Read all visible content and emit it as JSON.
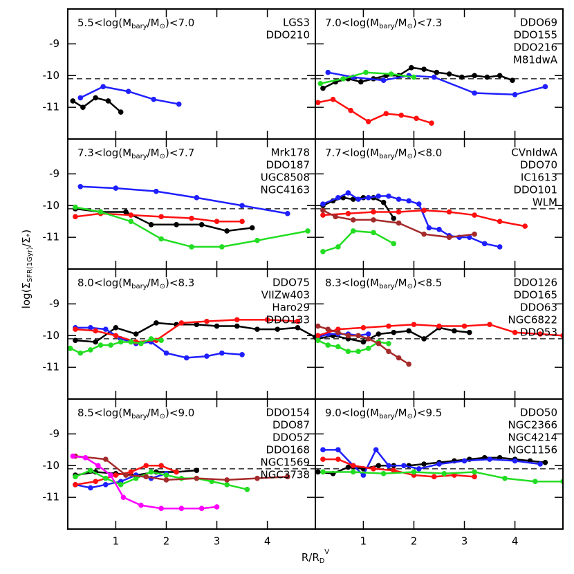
{
  "axes": {
    "y_label_parts": [
      "log(Σ",
      "SFR(1Gyr)",
      "/Σ",
      "*",
      ")"
    ],
    "x_label_parts": [
      "R/R",
      "D",
      "V"
    ],
    "panel_title_parts": [
      "log(M",
      "bary",
      "/M",
      "⊙",
      ")"
    ]
  },
  "chart_data": [
    {
      "type": "line",
      "title_prefix": "5.5<",
      "title_suffix": "<7.0",
      "xlim": [
        0.05,
        4.95
      ],
      "ylim": [
        -12.0,
        -7.9
      ],
      "xticks": [
        1,
        2,
        3,
        4
      ],
      "yticks": [
        -11,
        -10,
        -9
      ],
      "hline": -10.1,
      "series": [
        {
          "name": "LGS3",
          "color": "#000000",
          "x": [
            0.15,
            0.35,
            0.6,
            0.85,
            1.1
          ],
          "values": [
            -10.8,
            -11.0,
            -10.7,
            -10.8,
            -11.15
          ]
        },
        {
          "name": "DDO210",
          "color": "#1f1fff",
          "x": [
            0.3,
            0.75,
            1.25,
            1.75,
            2.25
          ],
          "values": [
            -10.7,
            -10.35,
            -10.5,
            -10.75,
            -10.9
          ]
        }
      ]
    },
    {
      "type": "line",
      "title_prefix": "7.0<",
      "title_suffix": "<7.3",
      "xlim": [
        0.05,
        4.95
      ],
      "ylim": [
        -12.0,
        -7.9
      ],
      "xticks": [
        1,
        2,
        3,
        4
      ],
      "yticks": [
        -11,
        -10,
        -9
      ],
      "hline": -10.1,
      "series": [
        {
          "name": "DDO69",
          "color": "#000000",
          "x": [
            0.2,
            0.45,
            0.7,
            0.95,
            1.2,
            1.45,
            1.7,
            1.95,
            2.2,
            2.45,
            2.7,
            2.95,
            3.2,
            3.45,
            3.7,
            3.95
          ],
          "values": [
            -10.4,
            -10.2,
            -10.1,
            -10.2,
            -10.1,
            -10.0,
            -10.0,
            -9.75,
            -9.8,
            -9.9,
            -9.95,
            -10.05,
            -10.0,
            -10.05,
            -10.0,
            -10.15
          ]
        },
        {
          "name": "DDO155",
          "color": "#1f1fff",
          "x": [
            0.3,
            0.8,
            1.4,
            1.9,
            2.4,
            3.2,
            4.0,
            4.6
          ],
          "values": [
            -9.9,
            -10.05,
            -10.15,
            -10.0,
            -10.05,
            -10.55,
            -10.6,
            -10.35
          ]
        },
        {
          "name": "DDO216",
          "color": "#ff1010",
          "x": [
            0.1,
            0.4,
            0.75,
            1.1,
            1.45,
            1.75,
            2.05,
            2.35
          ],
          "values": [
            -10.85,
            -10.75,
            -11.1,
            -11.45,
            -11.2,
            -11.25,
            -11.35,
            -11.5
          ]
        },
        {
          "name": "M81dwA",
          "color": "#22dd22",
          "x": [
            0.15,
            0.6,
            1.05,
            1.55,
            2.0
          ],
          "values": [
            -10.25,
            -10.1,
            -9.9,
            -9.95,
            -10.05
          ]
        }
      ]
    },
    {
      "type": "line",
      "title_prefix": "7.3<",
      "title_suffix": "<7.7",
      "xlim": [
        0.05,
        4.95
      ],
      "ylim": [
        -12.0,
        -7.9
      ],
      "xticks": [
        1,
        2,
        3,
        4
      ],
      "yticks": [
        -11,
        -10,
        -9
      ],
      "hline": -10.1,
      "series": [
        {
          "name": "Mrk178",
          "color": "#000000",
          "x": [
            0.2,
            0.7,
            1.2,
            1.7,
            2.2,
            2.7,
            3.2,
            3.7
          ],
          "values": [
            -10.1,
            -10.2,
            -10.2,
            -10.6,
            -10.6,
            -10.6,
            -10.8,
            -10.7
          ]
        },
        {
          "name": "DDO187",
          "color": "#1f1fff",
          "x": [
            0.3,
            1.0,
            1.8,
            2.6,
            3.5,
            4.4
          ],
          "values": [
            -9.4,
            -9.45,
            -9.55,
            -9.75,
            -10.0,
            -10.25
          ]
        },
        {
          "name": "UGC8508",
          "color": "#ff1010",
          "x": [
            0.2,
            0.7,
            1.3,
            1.9,
            2.5,
            3.0,
            3.5
          ],
          "values": [
            -10.35,
            -10.25,
            -10.3,
            -10.35,
            -10.4,
            -10.5,
            -10.5
          ]
        },
        {
          "name": "NGC4163",
          "color": "#22dd22",
          "x": [
            0.2,
            0.7,
            1.3,
            1.9,
            2.5,
            3.1,
            3.8,
            4.8
          ],
          "values": [
            -10.05,
            -10.2,
            -10.5,
            -11.05,
            -11.3,
            -11.3,
            -11.1,
            -10.8
          ]
        }
      ]
    },
    {
      "type": "line",
      "title_prefix": "7.7<",
      "title_suffix": "<8.0",
      "xlim": [
        0.05,
        4.95
      ],
      "ylim": [
        -12.0,
        -7.9
      ],
      "xticks": [
        1,
        2,
        3,
        4
      ],
      "yticks": [
        -11,
        -10,
        -9
      ],
      "hline": -10.1,
      "series": [
        {
          "name": "CVnIdwA",
          "color": "#000000",
          "x": [
            0.2,
            0.4,
            0.6,
            0.8,
            1.0,
            1.2,
            1.4,
            1.6
          ],
          "values": [
            -10.0,
            -9.85,
            -9.75,
            -9.8,
            -9.75,
            -9.75,
            -9.9,
            -10.4
          ]
        },
        {
          "name": "DDO70",
          "color": "#1f1fff",
          "x": [
            0.2,
            0.5,
            0.7,
            0.9,
            1.1,
            1.3,
            1.5,
            1.7,
            1.9,
            2.1,
            2.3,
            2.5,
            2.7,
            2.9,
            3.1,
            3.4,
            3.7
          ],
          "values": [
            -9.95,
            -9.75,
            -9.6,
            -9.8,
            -9.75,
            -9.7,
            -9.7,
            -9.8,
            -9.85,
            -9.95,
            -10.7,
            -10.75,
            -10.95,
            -11.0,
            -11.0,
            -11.2,
            -11.3
          ]
        },
        {
          "name": "IC1613",
          "color": "#ff1010",
          "x": [
            0.2,
            0.7,
            1.2,
            1.7,
            2.2,
            2.7,
            3.2,
            3.7,
            4.2
          ],
          "values": [
            -10.3,
            -10.25,
            -10.2,
            -10.2,
            -10.15,
            -10.2,
            -10.3,
            -10.5,
            -10.65
          ]
        },
        {
          "name": "DDO101",
          "color": "#22dd22",
          "x": [
            0.2,
            0.5,
            0.8,
            1.2,
            1.6
          ],
          "values": [
            -11.45,
            -11.3,
            -10.8,
            -10.85,
            -11.2
          ]
        },
        {
          "name": "WLM",
          "color": "#a52a2a",
          "x": [
            0.2,
            0.45,
            0.8,
            1.2,
            1.7,
            2.2,
            2.7,
            3.2
          ],
          "values": [
            -10.15,
            -10.35,
            -10.45,
            -10.45,
            -10.55,
            -10.9,
            -11.0,
            -10.9
          ]
        }
      ]
    },
    {
      "type": "line",
      "title_prefix": "8.0<",
      "title_suffix": "<8.3",
      "xlim": [
        0.05,
        4.95
      ],
      "ylim": [
        -12.0,
        -7.9
      ],
      "xticks": [
        1,
        2,
        3,
        4
      ],
      "yticks": [
        -11,
        -10,
        -9
      ],
      "hline": -10.1,
      "series": [
        {
          "name": "DDO75",
          "color": "#000000",
          "x": [
            0.2,
            0.6,
            1.0,
            1.4,
            1.8,
            2.2,
            2.6,
            3.0,
            3.4,
            3.8,
            4.2,
            4.6,
            4.95
          ],
          "values": [
            -10.15,
            -10.2,
            -9.75,
            -9.95,
            -9.6,
            -9.65,
            -9.65,
            -9.7,
            -9.7,
            -9.8,
            -9.8,
            -9.75,
            -10.05
          ]
        },
        {
          "name": "VIIZw403",
          "color": "#1f1fff",
          "x": [
            0.2,
            0.5,
            0.8,
            1.1,
            1.4,
            1.7,
            2.0,
            2.4,
            2.8,
            3.1,
            3.5
          ],
          "values": [
            -9.75,
            -9.75,
            -9.8,
            -10.1,
            -10.25,
            -10.2,
            -10.55,
            -10.7,
            -10.65,
            -10.55,
            -10.6
          ]
        },
        {
          "name": "Haro29",
          "color": "#ff1010",
          "x": [
            0.2,
            0.6,
            1.0,
            1.4,
            1.8,
            2.3,
            2.8,
            3.4,
            4.0,
            4.6
          ],
          "values": [
            -9.8,
            -9.85,
            -10.0,
            -10.2,
            -10.15,
            -9.6,
            -9.55,
            -9.5,
            -9.5,
            -9.55
          ]
        },
        {
          "name": "DDO133",
          "color": "#22dd22",
          "x": [
            0.1,
            0.3,
            0.5,
            0.7,
            0.9,
            1.1,
            1.3,
            1.5,
            1.7,
            1.9
          ],
          "values": [
            -10.4,
            -10.55,
            -10.45,
            -10.3,
            -10.3,
            -10.2,
            -10.2,
            -10.25,
            -10.1,
            -10.15
          ]
        }
      ]
    },
    {
      "type": "line",
      "title_prefix": "8.3<",
      "title_suffix": "<8.5",
      "xlim": [
        0.05,
        4.95
      ],
      "ylim": [
        -12.0,
        -7.9
      ],
      "xticks": [
        1,
        2,
        3,
        4
      ],
      "yticks": [
        -11,
        -10,
        -9
      ],
      "hline": -10.1,
      "series": [
        {
          "name": "DDO126",
          "color": "#000000",
          "x": [
            0.1,
            0.4,
            0.7,
            1.0,
            1.3,
            1.6,
            1.9,
            2.2,
            2.5,
            2.8,
            3.1
          ],
          "values": [
            -10.1,
            -10.0,
            -10.1,
            -10.2,
            -9.95,
            -9.9,
            -9.85,
            -10.1,
            -9.75,
            -9.85,
            -9.9
          ]
        },
        {
          "name": "DDO165",
          "color": "#1f1fff",
          "x": [
            0.1,
            0.3,
            0.5,
            0.7,
            0.9,
            1.1
          ],
          "values": [
            -10.05,
            -9.95,
            -9.95,
            -9.95,
            -10.0,
            -9.95
          ]
        },
        {
          "name": "DDO63",
          "color": "#ff1010",
          "x": [
            0.1,
            0.5,
            1.0,
            1.5,
            2.0,
            2.5,
            3.0,
            3.5,
            4.0,
            4.5,
            4.95
          ],
          "values": [
            -10.0,
            -9.8,
            -9.75,
            -9.7,
            -9.65,
            -9.7,
            -9.7,
            -9.65,
            -9.9,
            -9.95,
            -10.0
          ]
        },
        {
          "name": "NGC6822",
          "color": "#22dd22",
          "x": [
            0.1,
            0.3,
            0.5,
            0.7,
            0.9,
            1.1,
            1.3,
            1.5
          ],
          "values": [
            -10.15,
            -10.3,
            -10.35,
            -10.5,
            -10.5,
            -10.4,
            -10.2,
            -10.25
          ]
        },
        {
          "name": "DDO53",
          "color": "#a52a2a",
          "x": [
            0.1,
            0.3,
            0.5,
            0.7,
            0.9,
            1.1,
            1.3,
            1.5,
            1.7,
            1.9
          ],
          "values": [
            -9.7,
            -9.8,
            -9.9,
            -10.0,
            -10.0,
            -10.1,
            -10.25,
            -10.5,
            -10.7,
            -10.9
          ]
        }
      ]
    },
    {
      "type": "line",
      "title_prefix": "8.5<",
      "title_suffix": "<9.0",
      "xlim": [
        0.05,
        4.95
      ],
      "ylim": [
        -12.0,
        -7.9
      ],
      "xticks": [
        1,
        2,
        3,
        4
      ],
      "yticks": [
        -11,
        -10,
        -9
      ],
      "hline": -10.1,
      "series": [
        {
          "name": "DDO154",
          "color": "#000000",
          "x": [
            0.2,
            0.6,
            1.0,
            1.4,
            1.8,
            2.2,
            2.6
          ],
          "values": [
            -10.3,
            -10.2,
            -10.25,
            -10.3,
            -10.2,
            -10.2,
            -10.15
          ]
        },
        {
          "name": "DDO87",
          "color": "#1f1fff",
          "x": [
            0.2,
            0.5,
            0.8,
            1.1,
            1.4,
            1.7,
            2.0
          ],
          "values": [
            -10.6,
            -10.7,
            -10.6,
            -10.5,
            -10.3,
            -10.4,
            -10.25
          ]
        },
        {
          "name": "DDO52",
          "color": "#ff1010",
          "x": [
            0.2,
            0.6,
            1.0,
            1.3,
            1.6,
            1.9,
            2.2
          ],
          "values": [
            -10.6,
            -10.5,
            -10.3,
            -10.2,
            -10.0,
            -10.0,
            -10.2
          ]
        },
        {
          "name": "DDO168",
          "color": "#22dd22",
          "x": [
            0.2,
            0.5,
            0.8,
            1.1,
            1.4,
            1.7,
            2.0,
            2.3,
            2.6,
            2.9,
            3.2,
            3.6
          ],
          "values": [
            -10.35,
            -10.15,
            -10.4,
            -10.6,
            -10.4,
            -10.2,
            -10.3,
            -10.4,
            -10.4,
            -10.5,
            -10.6,
            -10.75
          ]
        },
        {
          "name": "NGC1569",
          "color": "#a52a2a",
          "x": [
            0.2,
            0.8,
            1.2,
            1.6,
            2.0,
            2.6,
            3.2,
            3.8,
            4.4
          ],
          "values": [
            -9.7,
            -9.8,
            -10.3,
            -10.35,
            -10.45,
            -10.4,
            -10.45,
            -10.4,
            -10.35
          ]
        },
        {
          "name": "NGC3738",
          "color": "#ff00ff",
          "x": [
            0.15,
            0.4,
            0.65,
            0.9,
            1.15,
            1.5,
            1.9,
            2.3,
            2.7,
            3.0
          ],
          "values": [
            -9.7,
            -9.75,
            -10.0,
            -10.3,
            -11.0,
            -11.25,
            -11.35,
            -11.35,
            -11.35,
            -11.3
          ]
        }
      ]
    },
    {
      "type": "line",
      "title_prefix": "9.0<",
      "title_suffix": "<9.5",
      "xlim": [
        0.05,
        4.95
      ],
      "ylim": [
        -12.0,
        -7.9
      ],
      "xticks": [
        1,
        2,
        3,
        4
      ],
      "yticks": [
        -11,
        -10,
        -9
      ],
      "hline": -10.1,
      "series": [
        {
          "name": "DDO50",
          "color": "#000000",
          "x": [
            0.1,
            0.4,
            0.7,
            1.0,
            1.3,
            1.6,
            1.9,
            2.2,
            2.5,
            2.8,
            3.1,
            3.4,
            3.7,
            4.0,
            4.3,
            4.6
          ],
          "values": [
            -10.2,
            -10.25,
            -10.05,
            -10.1,
            -10.0,
            -10.0,
            -10.0,
            -9.95,
            -9.9,
            -9.85,
            -9.8,
            -9.75,
            -9.75,
            -9.8,
            -9.85,
            -9.9
          ]
        },
        {
          "name": "NGC2366",
          "color": "#1f1fff",
          "x": [
            0.2,
            0.5,
            0.8,
            1.0,
            1.25,
            1.5,
            1.8,
            2.1,
            2.5,
            3.0,
            3.5,
            4.0,
            4.5
          ],
          "values": [
            -9.5,
            -9.5,
            -10.0,
            -10.3,
            -9.5,
            -10.0,
            -10.0,
            -10.1,
            -9.95,
            -9.85,
            -9.8,
            -9.85,
            -9.95
          ]
        },
        {
          "name": "NGC4214",
          "color": "#ff1010",
          "x": [
            0.2,
            0.5,
            0.8,
            1.2,
            1.6,
            2.0,
            2.4,
            2.8,
            3.2
          ],
          "values": [
            -9.8,
            -9.8,
            -10.0,
            -10.1,
            -10.15,
            -10.3,
            -10.35,
            -10.3,
            -10.35
          ]
        },
        {
          "name": "NGC1156",
          "color": "#22dd22",
          "x": [
            0.2,
            0.8,
            1.4,
            2.0,
            2.6,
            3.2,
            3.8,
            4.4,
            4.95
          ],
          "values": [
            -10.2,
            -10.2,
            -10.25,
            -10.2,
            -10.25,
            -10.2,
            -10.4,
            -10.5,
            -10.5
          ]
        }
      ]
    }
  ]
}
